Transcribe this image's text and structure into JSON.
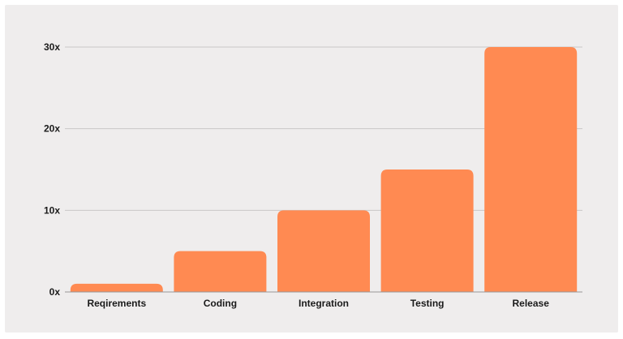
{
  "chart_data": {
    "type": "bar",
    "title": "",
    "xlabel": "",
    "ylabel": "",
    "categories": [
      "Reqirements",
      "Coding",
      "Integration",
      "Testing",
      "Release"
    ],
    "values": [
      1,
      5,
      10,
      15,
      30
    ],
    "ylim": [
      0,
      30
    ],
    "yticks": [
      0,
      10,
      20,
      30
    ],
    "ytick_labels": [
      "0x",
      "10x",
      "20x",
      "30x"
    ],
    "grid": true,
    "legend": "none",
    "bar_color": "#ff8a52",
    "background_color": "#efeded"
  }
}
